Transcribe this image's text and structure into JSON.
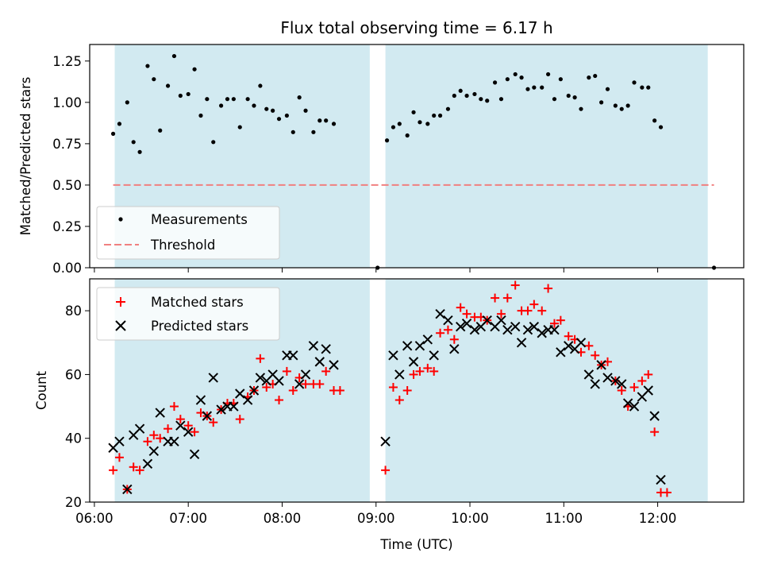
{
  "chart_data": [
    {
      "type": "scatter",
      "title": "Flux total observing time = 6.17 h",
      "xlabel": "",
      "ylabel": "Matched/Predicted stars",
      "xlim": [
        "05:57",
        "12:55"
      ],
      "ylim": [
        0,
        1.35
      ],
      "yticks": [
        "0.00",
        "0.25",
        "0.50",
        "0.75",
        "1.00",
        "1.25"
      ],
      "grid": false,
      "legend_position": "lower-left",
      "shaded_intervals": [
        {
          "start": "06:13",
          "end": "08:56"
        },
        {
          "start": "09:06",
          "end": "12:32"
        }
      ],
      "shade_color": "#add8e6",
      "series": [
        {
          "name": "Measurements",
          "color": "#000000",
          "marker": "dot",
          "points": [
            [
              "06:12",
              0.81
            ],
            [
              "06:16",
              0.87
            ],
            [
              "06:21",
              1.0
            ],
            [
              "06:25",
              0.76
            ],
            [
              "06:29",
              0.7
            ],
            [
              "06:34",
              1.22
            ],
            [
              "06:38",
              1.14
            ],
            [
              "06:42",
              0.83
            ],
            [
              "06:47",
              1.1
            ],
            [
              "06:51",
              1.28
            ],
            [
              "06:55",
              1.04
            ],
            [
              "07:00",
              1.05
            ],
            [
              "07:04",
              1.2
            ],
            [
              "07:08",
              0.92
            ],
            [
              "07:12",
              1.02
            ],
            [
              "07:16",
              0.76
            ],
            [
              "07:21",
              0.98
            ],
            [
              "07:25",
              1.02
            ],
            [
              "07:29",
              1.02
            ],
            [
              "07:33",
              0.85
            ],
            [
              "07:38",
              1.02
            ],
            [
              "07:42",
              0.98
            ],
            [
              "07:46",
              1.1
            ],
            [
              "07:50",
              0.96
            ],
            [
              "07:54",
              0.95
            ],
            [
              "07:58",
              0.9
            ],
            [
              "08:03",
              0.92
            ],
            [
              "08:07",
              0.82
            ],
            [
              "08:11",
              1.03
            ],
            [
              "08:15",
              0.95
            ],
            [
              "08:20",
              0.82
            ],
            [
              "08:24",
              0.89
            ],
            [
              "08:28",
              0.89
            ],
            [
              "08:33",
              0.87
            ],
            [
              "09:01",
              0.0
            ],
            [
              "09:07",
              0.77
            ],
            [
              "09:11",
              0.85
            ],
            [
              "09:15",
              0.87
            ],
            [
              "09:20",
              0.8
            ],
            [
              "09:24",
              0.94
            ],
            [
              "09:28",
              0.88
            ],
            [
              "09:33",
              0.87
            ],
            [
              "09:37",
              0.92
            ],
            [
              "09:41",
              0.92
            ],
            [
              "09:46",
              0.96
            ],
            [
              "09:50",
              1.04
            ],
            [
              "09:54",
              1.07
            ],
            [
              "09:58",
              1.04
            ],
            [
              "10:03",
              1.05
            ],
            [
              "10:07",
              1.02
            ],
            [
              "10:11",
              1.01
            ],
            [
              "10:16",
              1.12
            ],
            [
              "10:20",
              1.02
            ],
            [
              "10:24",
              1.14
            ],
            [
              "10:29",
              1.17
            ],
            [
              "10:33",
              1.15
            ],
            [
              "10:37",
              1.08
            ],
            [
              "10:41",
              1.09
            ],
            [
              "10:46",
              1.09
            ],
            [
              "10:50",
              1.17
            ],
            [
              "10:54",
              1.02
            ],
            [
              "10:58",
              1.14
            ],
            [
              "11:03",
              1.04
            ],
            [
              "11:07",
              1.03
            ],
            [
              "11:11",
              0.96
            ],
            [
              "11:16",
              1.15
            ],
            [
              "11:20",
              1.16
            ],
            [
              "11:24",
              1.0
            ],
            [
              "11:28",
              1.08
            ],
            [
              "11:33",
              0.98
            ],
            [
              "11:37",
              0.96
            ],
            [
              "11:41",
              0.98
            ],
            [
              "11:45",
              1.12
            ],
            [
              "11:50",
              1.09
            ],
            [
              "11:54",
              1.09
            ],
            [
              "11:58",
              0.89
            ],
            [
              "12:02",
              0.85
            ],
            [
              "12:36",
              0.0
            ]
          ]
        },
        {
          "name": "Threshold",
          "color": "#f08080",
          "style": "dashed",
          "points": [
            [
              "06:12",
              0.5
            ],
            [
              "12:36",
              0.5
            ]
          ]
        }
      ]
    },
    {
      "type": "scatter",
      "title": "",
      "xlabel": "Time (UTC)",
      "ylabel": "Count",
      "xlim": [
        "05:57",
        "12:55"
      ],
      "ylim": [
        20,
        90
      ],
      "yticks": [
        "20",
        "40",
        "60",
        "80"
      ],
      "xticks": [
        "06:00",
        "07:00",
        "08:00",
        "09:00",
        "10:00",
        "11:00",
        "12:00"
      ],
      "grid": false,
      "legend_position": "upper-left",
      "shaded_intervals": [
        {
          "start": "06:13",
          "end": "08:56"
        },
        {
          "start": "09:06",
          "end": "12:32"
        }
      ],
      "shade_color": "#add8e6",
      "series": [
        {
          "name": "Matched stars",
          "color": "#ff0000",
          "marker": "plus",
          "points": [
            [
              "06:12",
              30
            ],
            [
              "06:16",
              34
            ],
            [
              "06:21",
              24
            ],
            [
              "06:25",
              31
            ],
            [
              "06:29",
              30
            ],
            [
              "06:34",
              39
            ],
            [
              "06:38",
              41
            ],
            [
              "06:42",
              40
            ],
            [
              "06:47",
              43
            ],
            [
              "06:51",
              50
            ],
            [
              "06:55",
              46
            ],
            [
              "07:00",
              44
            ],
            [
              "07:04",
              42
            ],
            [
              "07:08",
              48
            ],
            [
              "07:12",
              47
            ],
            [
              "07:16",
              45
            ],
            [
              "07:21",
              49
            ],
            [
              "07:25",
              51
            ],
            [
              "07:29",
              51
            ],
            [
              "07:33",
              46
            ],
            [
              "07:38",
              53
            ],
            [
              "07:42",
              55
            ],
            [
              "07:46",
              65
            ],
            [
              "07:50",
              56
            ],
            [
              "07:54",
              57
            ],
            [
              "07:58",
              52
            ],
            [
              "08:03",
              61
            ],
            [
              "08:07",
              55
            ],
            [
              "08:11",
              59
            ],
            [
              "08:15",
              57
            ],
            [
              "08:20",
              57
            ],
            [
              "08:24",
              57
            ],
            [
              "08:28",
              61
            ],
            [
              "08:33",
              55
            ],
            [
              "08:37",
              55
            ],
            [
              "09:06",
              30
            ],
            [
              "09:11",
              56
            ],
            [
              "09:15",
              52
            ],
            [
              "09:20",
              55
            ],
            [
              "09:24",
              60
            ],
            [
              "09:28",
              61
            ],
            [
              "09:33",
              62
            ],
            [
              "09:37",
              61
            ],
            [
              "09:41",
              73
            ],
            [
              "09:46",
              74
            ],
            [
              "09:50",
              71
            ],
            [
              "09:54",
              81
            ],
            [
              "09:58",
              79
            ],
            [
              "10:03",
              78
            ],
            [
              "10:07",
              78
            ],
            [
              "10:11",
              77
            ],
            [
              "10:16",
              84
            ],
            [
              "10:20",
              79
            ],
            [
              "10:24",
              84
            ],
            [
              "10:29",
              88
            ],
            [
              "10:33",
              80
            ],
            [
              "10:37",
              80
            ],
            [
              "10:41",
              82
            ],
            [
              "10:46",
              80
            ],
            [
              "10:50",
              87
            ],
            [
              "10:54",
              76
            ],
            [
              "10:58",
              77
            ],
            [
              "11:03",
              72
            ],
            [
              "11:07",
              71
            ],
            [
              "11:11",
              67
            ],
            [
              "11:16",
              69
            ],
            [
              "11:20",
              66
            ],
            [
              "11:24",
              63
            ],
            [
              "11:28",
              64
            ],
            [
              "11:33",
              58
            ],
            [
              "11:37",
              55
            ],
            [
              "11:41",
              50
            ],
            [
              "11:45",
              56
            ],
            [
              "11:50",
              58
            ],
            [
              "11:54",
              60
            ],
            [
              "11:58",
              42
            ],
            [
              "12:02",
              23
            ],
            [
              "12:06",
              23
            ]
          ]
        },
        {
          "name": "Predicted stars",
          "color": "#000000",
          "marker": "x",
          "points": [
            [
              "06:12",
              37
            ],
            [
              "06:16",
              39
            ],
            [
              "06:21",
              24
            ],
            [
              "06:25",
              41
            ],
            [
              "06:29",
              43
            ],
            [
              "06:34",
              32
            ],
            [
              "06:38",
              36
            ],
            [
              "06:42",
              48
            ],
            [
              "06:47",
              39
            ],
            [
              "06:51",
              39
            ],
            [
              "06:55",
              44
            ],
            [
              "07:00",
              42
            ],
            [
              "07:04",
              35
            ],
            [
              "07:08",
              52
            ],
            [
              "07:12",
              47
            ],
            [
              "07:16",
              59
            ],
            [
              "07:21",
              49
            ],
            [
              "07:25",
              50
            ],
            [
              "07:29",
              50
            ],
            [
              "07:33",
              54
            ],
            [
              "07:38",
              52
            ],
            [
              "07:42",
              55
            ],
            [
              "07:46",
              59
            ],
            [
              "07:50",
              58
            ],
            [
              "07:54",
              60
            ],
            [
              "07:58",
              58
            ],
            [
              "08:03",
              66
            ],
            [
              "08:07",
              66
            ],
            [
              "08:11",
              57
            ],
            [
              "08:15",
              60
            ],
            [
              "08:20",
              69
            ],
            [
              "08:24",
              64
            ],
            [
              "08:28",
              68
            ],
            [
              "08:33",
              63
            ],
            [
              "09:06",
              39
            ],
            [
              "09:11",
              66
            ],
            [
              "09:15",
              60
            ],
            [
              "09:20",
              69
            ],
            [
              "09:24",
              64
            ],
            [
              "09:28",
              69
            ],
            [
              "09:33",
              71
            ],
            [
              "09:37",
              66
            ],
            [
              "09:41",
              79
            ],
            [
              "09:46",
              77
            ],
            [
              "09:50",
              68
            ],
            [
              "09:54",
              75
            ],
            [
              "09:58",
              76
            ],
            [
              "10:03",
              74
            ],
            [
              "10:07",
              75
            ],
            [
              "10:11",
              77
            ],
            [
              "10:16",
              75
            ],
            [
              "10:20",
              77
            ],
            [
              "10:24",
              74
            ],
            [
              "10:29",
              75
            ],
            [
              "10:33",
              70
            ],
            [
              "10:37",
              74
            ],
            [
              "10:41",
              75
            ],
            [
              "10:46",
              73
            ],
            [
              "10:50",
              74
            ],
            [
              "10:54",
              74
            ],
            [
              "10:58",
              67
            ],
            [
              "11:03",
              69
            ],
            [
              "11:07",
              68
            ],
            [
              "11:11",
              70
            ],
            [
              "11:16",
              60
            ],
            [
              "11:20",
              57
            ],
            [
              "11:24",
              63
            ],
            [
              "11:28",
              59
            ],
            [
              "11:33",
              58
            ],
            [
              "11:37",
              57
            ],
            [
              "11:41",
              51
            ],
            [
              "11:45",
              50
            ],
            [
              "11:50",
              53
            ],
            [
              "11:54",
              55
            ],
            [
              "11:58",
              47
            ],
            [
              "12:02",
              27
            ]
          ]
        }
      ]
    }
  ]
}
